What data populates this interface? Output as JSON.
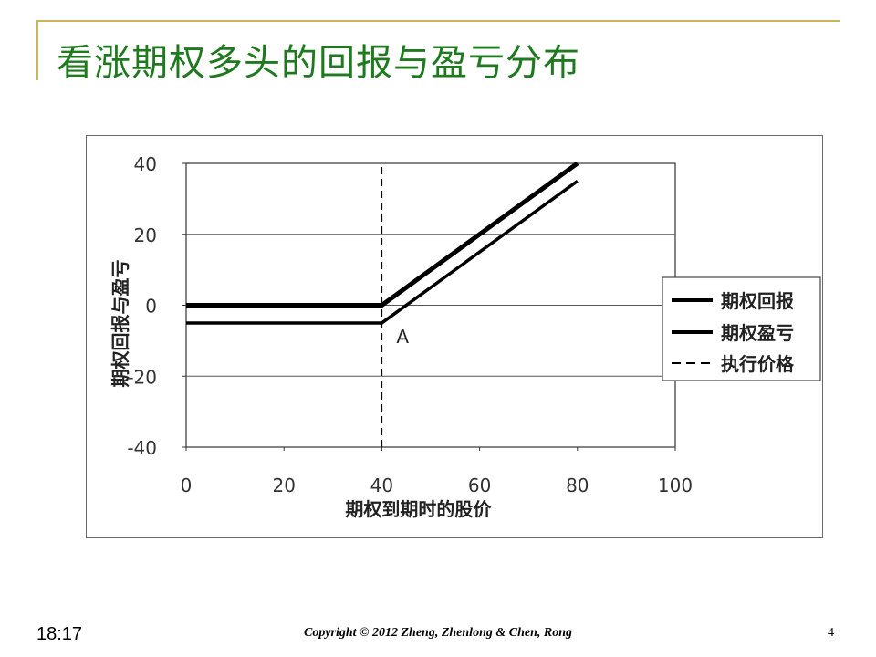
{
  "slide": {
    "title": "看涨期权多头的回报与盈亏分布",
    "time": "18:17",
    "copyright": "Copyright © 2012 Zheng, Zhenlong & Chen, Rong",
    "page_number": "4"
  },
  "chart_data": {
    "type": "line",
    "xlabel": "期权到期时的股价",
    "ylabel": "期权回报与盈亏",
    "xlim": [
      0,
      100
    ],
    "ylim": [
      -40,
      40
    ],
    "x_ticks": [
      0,
      20,
      40,
      60,
      80,
      100
    ],
    "y_ticks": [
      40,
      20,
      0,
      -20,
      -40
    ],
    "grid": "horizontal",
    "legend_position": "right",
    "strike": 40,
    "annotation": {
      "label": "A",
      "x": 40,
      "y": -5
    },
    "series": [
      {
        "name": "期权回报",
        "style": "solid",
        "x": [
          0,
          40,
          80
        ],
        "y": [
          0,
          0,
          40
        ]
      },
      {
        "name": "期权盈亏",
        "style": "solid",
        "x": [
          0,
          40,
          80
        ],
        "y": [
          -5,
          -5,
          35
        ]
      },
      {
        "name": "执行价格",
        "style": "dashed",
        "x": [
          40,
          40
        ],
        "y": [
          -40,
          40
        ]
      }
    ],
    "colors": {
      "lines": "#000000",
      "grid": "#555555"
    }
  }
}
